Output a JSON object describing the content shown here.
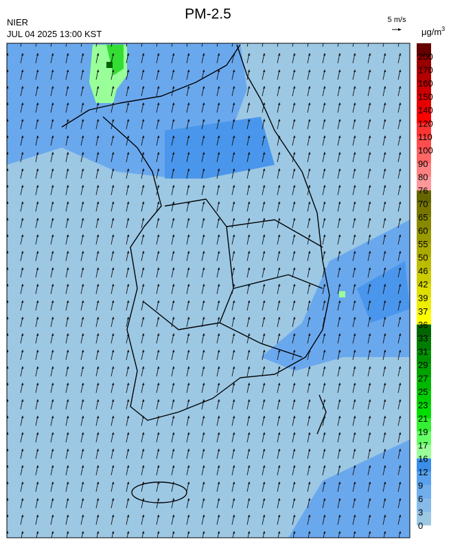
{
  "header": {
    "title": "PM-2.5",
    "agency": "NIER",
    "timestamp": "JUL 04 2025 13:00 KST"
  },
  "wind_scale": {
    "label": "5 m/s"
  },
  "colorbar": {
    "unit": "μg/m",
    "unit_superscript": "3",
    "levels": [
      "0",
      "3",
      "6",
      "9",
      "12",
      "16",
      "17",
      "19",
      "21",
      "23",
      "25",
      "27",
      "29",
      "31",
      "33",
      "36",
      "37",
      "39",
      "42",
      "46",
      "50",
      "55",
      "60",
      "65",
      "70",
      "76",
      "80",
      "90",
      "100",
      "110",
      "120",
      "140",
      "150",
      "160",
      "170",
      "200"
    ],
    "colors": [
      "#9cc8e4",
      "#86bbe9",
      "#70aeec",
      "#5aa2ee",
      "#3a8ee8",
      "#99ff99",
      "#66ff66",
      "#33f033",
      "#00e000",
      "#00cc00",
      "#00b800",
      "#00a400",
      "#009000",
      "#007c00",
      "#006600",
      "#ffff00",
      "#eded00",
      "#dede00",
      "#cccc00",
      "#bbbb00",
      "#aaaa00",
      "#999900",
      "#888800",
      "#777700",
      "#666600",
      "#ff9999",
      "#ff8080",
      "#ff6666",
      "#ff4d4d",
      "#ff3333",
      "#ff0000",
      "#e60000",
      "#cc0000",
      "#b30000",
      "#990000",
      "#660000"
    ]
  }
}
